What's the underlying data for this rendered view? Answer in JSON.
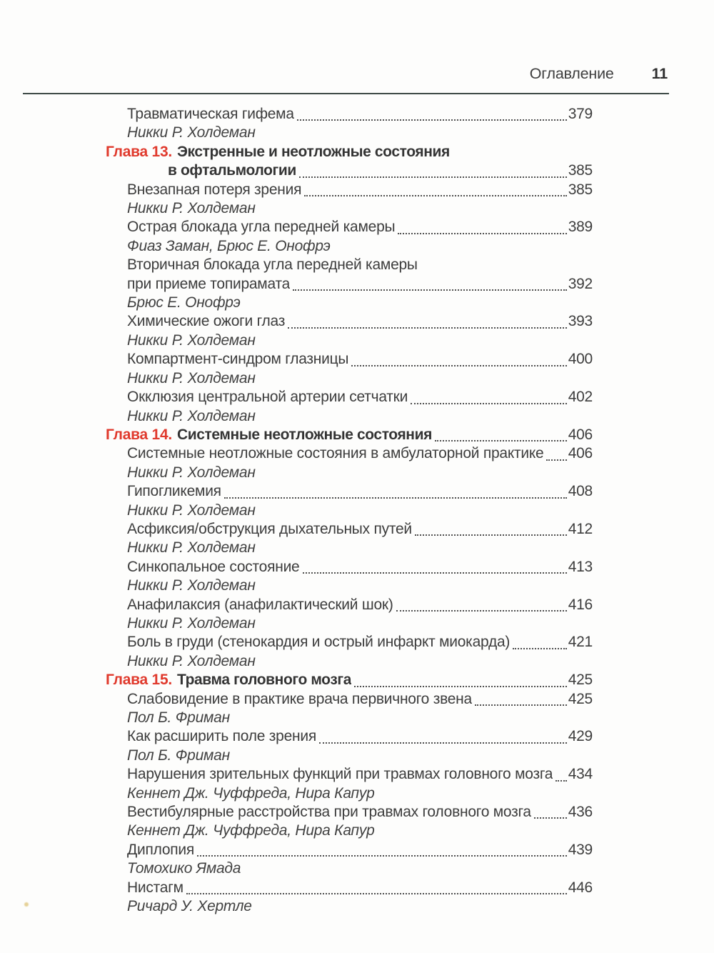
{
  "header": {
    "title": "Оглавление",
    "page_number": "11"
  },
  "colors": {
    "chapter_label": "#e0392c",
    "body_text": "#3d3d3d",
    "header_rule": "#3e4a47",
    "dot_leader": "#4f4f4f"
  },
  "toc": {
    "entries": [
      {
        "kind": "section",
        "title": "Травматическая гифема",
        "page": "379",
        "authors": "Никки Р. Холдеман"
      },
      {
        "kind": "chapter",
        "label": "Глава 13.",
        "title": "Экстренные и неотложные состояния",
        "title2": "в офтальмологии",
        "page": "385"
      },
      {
        "kind": "section",
        "title": "Внезапная потеря зрения",
        "page": "385",
        "authors": "Никки Р. Холдеман"
      },
      {
        "kind": "section",
        "title": "Острая блокада угла передней камеры",
        "page": "389",
        "authors": "Фиаз Заман, Брюс Е. Онофрэ"
      },
      {
        "kind": "section",
        "title": "Вторичная блокада угла передней камеры",
        "title2": "при приеме топирамата",
        "page": "392",
        "authors": "Брюс Е. Онофрэ"
      },
      {
        "kind": "section",
        "title": "Химические ожоги глаз",
        "page": "393",
        "authors": "Никки Р. Холдеман"
      },
      {
        "kind": "section",
        "title": "Компартмент-синдром глазницы",
        "page": "400",
        "authors": "Никки Р. Холдеман"
      },
      {
        "kind": "section",
        "title": "Окклюзия центральной артерии сетчатки",
        "page": "402",
        "authors": "Никки Р. Холдеман"
      },
      {
        "kind": "chapter",
        "label": "Глава 14.",
        "title": "Системные неотложные состояния",
        "page": "406"
      },
      {
        "kind": "section",
        "title": "Системные неотложные состояния в амбулаторной практике",
        "page": "406",
        "authors": "Никки Р. Холдеман"
      },
      {
        "kind": "section",
        "title": "Гипогликемия",
        "page": "408",
        "authors": "Никки Р. Холдеман"
      },
      {
        "kind": "section",
        "title": "Асфиксия/обструкция дыхательных путей",
        "page": "412",
        "authors": "Никки Р. Холдеман"
      },
      {
        "kind": "section",
        "title": "Синкопальное состояние",
        "page": "413",
        "authors": "Никки Р. Холдеман"
      },
      {
        "kind": "section",
        "title": "Анафилаксия (анафилактический шок)",
        "page": "416",
        "authors": "Никки Р. Холдеман"
      },
      {
        "kind": "section",
        "title": "Боль в груди (стенокардия и острый инфаркт миокарда)",
        "page": "421",
        "authors": "Никки Р. Холдеман"
      },
      {
        "kind": "chapter",
        "label": "Глава 15.",
        "title": "Травма головного мозга",
        "page": "425"
      },
      {
        "kind": "section",
        "title": "Слабовидение в практике врача первичного звена",
        "page": "425",
        "authors": "Пол Б. Фриман"
      },
      {
        "kind": "section",
        "title": "Как расширить поле зрения",
        "page": "429",
        "authors": "Пол Б. Фриман"
      },
      {
        "kind": "section",
        "title": "Нарушения зрительных функций при травмах головного мозга",
        "page": "434",
        "authors": "Кеннет Дж. Чуффреда, Нира Капур"
      },
      {
        "kind": "section",
        "title": "Вестибулярные расстройства при травмах головного мозга",
        "page": "436",
        "authors": "Кеннет Дж. Чуффреда, Нира Капур"
      },
      {
        "kind": "section",
        "title": "Диплопия",
        "page": "439",
        "authors": "Томохико Ямада"
      },
      {
        "kind": "section",
        "title": "Нистагм",
        "page": "446",
        "authors": "Ричард У. Хертле"
      }
    ]
  }
}
